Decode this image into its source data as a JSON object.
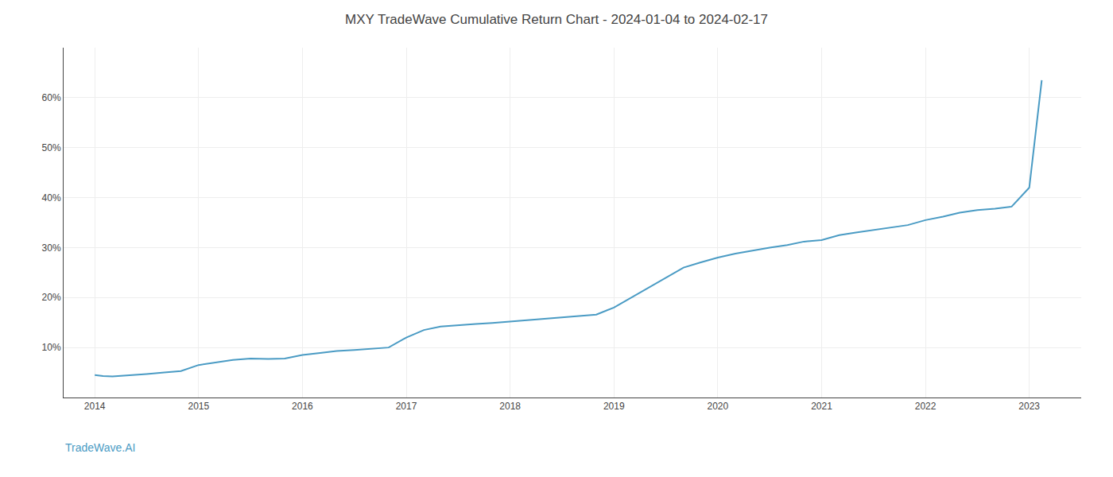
{
  "chart_data": {
    "type": "line",
    "title": "MXY TradeWave Cumulative Return Chart - 2024-01-04 to 2024-02-17",
    "annotations": [
      "TradeWave.AI"
    ],
    "color": "#4a9bc4",
    "grid": true,
    "x": [
      2014.0,
      2014.08,
      2014.17,
      2014.33,
      2014.5,
      2014.67,
      2014.83,
      2015.0,
      2015.17,
      2015.33,
      2015.5,
      2015.67,
      2015.83,
      2016.0,
      2016.17,
      2016.33,
      2016.5,
      2016.67,
      2016.83,
      2017.0,
      2017.17,
      2017.33,
      2017.5,
      2017.67,
      2017.83,
      2018.0,
      2018.17,
      2018.33,
      2018.5,
      2018.67,
      2018.83,
      2019.0,
      2019.17,
      2019.33,
      2019.5,
      2019.67,
      2019.83,
      2020.0,
      2020.17,
      2020.33,
      2020.5,
      2020.67,
      2020.83,
      2021.0,
      2021.17,
      2021.33,
      2021.5,
      2021.67,
      2021.83,
      2022.0,
      2022.17,
      2022.33,
      2022.5,
      2022.67,
      2022.83,
      2023.0,
      2023.08,
      2023.12
    ],
    "values": [
      4.5,
      4.3,
      4.2,
      4.4,
      4.7,
      5.0,
      5.3,
      6.5,
      7.0,
      7.5,
      7.8,
      7.7,
      7.8,
      8.5,
      8.9,
      9.3,
      9.5,
      9.7,
      10.0,
      12.0,
      13.5,
      14.2,
      14.5,
      14.7,
      14.9,
      15.2,
      15.5,
      15.8,
      16.0,
      16.3,
      16.6,
      18.0,
      20.0,
      22.0,
      24.0,
      26.0,
      27.0,
      28.0,
      28.8,
      29.4,
      30.0,
      30.5,
      31.2,
      31.5,
      32.5,
      33.0,
      33.5,
      34.0,
      34.5,
      35.5,
      36.2,
      37.0,
      37.5,
      37.8,
      38.2,
      42.0,
      56.0,
      63.5
    ],
    "xlim": [
      2013.7,
      2023.5
    ],
    "xticks": [
      2014,
      2015,
      2016,
      2017,
      2018,
      2019,
      2020,
      2021,
      2022,
      2023
    ],
    "ylim": [
      0,
      70
    ],
    "yticks": [
      {
        "value": 10,
        "label": "10%"
      },
      {
        "value": 20,
        "label": "20%"
      },
      {
        "value": 30,
        "label": "30%"
      },
      {
        "value": 40,
        "label": "40%"
      },
      {
        "value": 50,
        "label": "50%"
      },
      {
        "value": 60,
        "label": "60%"
      }
    ]
  }
}
